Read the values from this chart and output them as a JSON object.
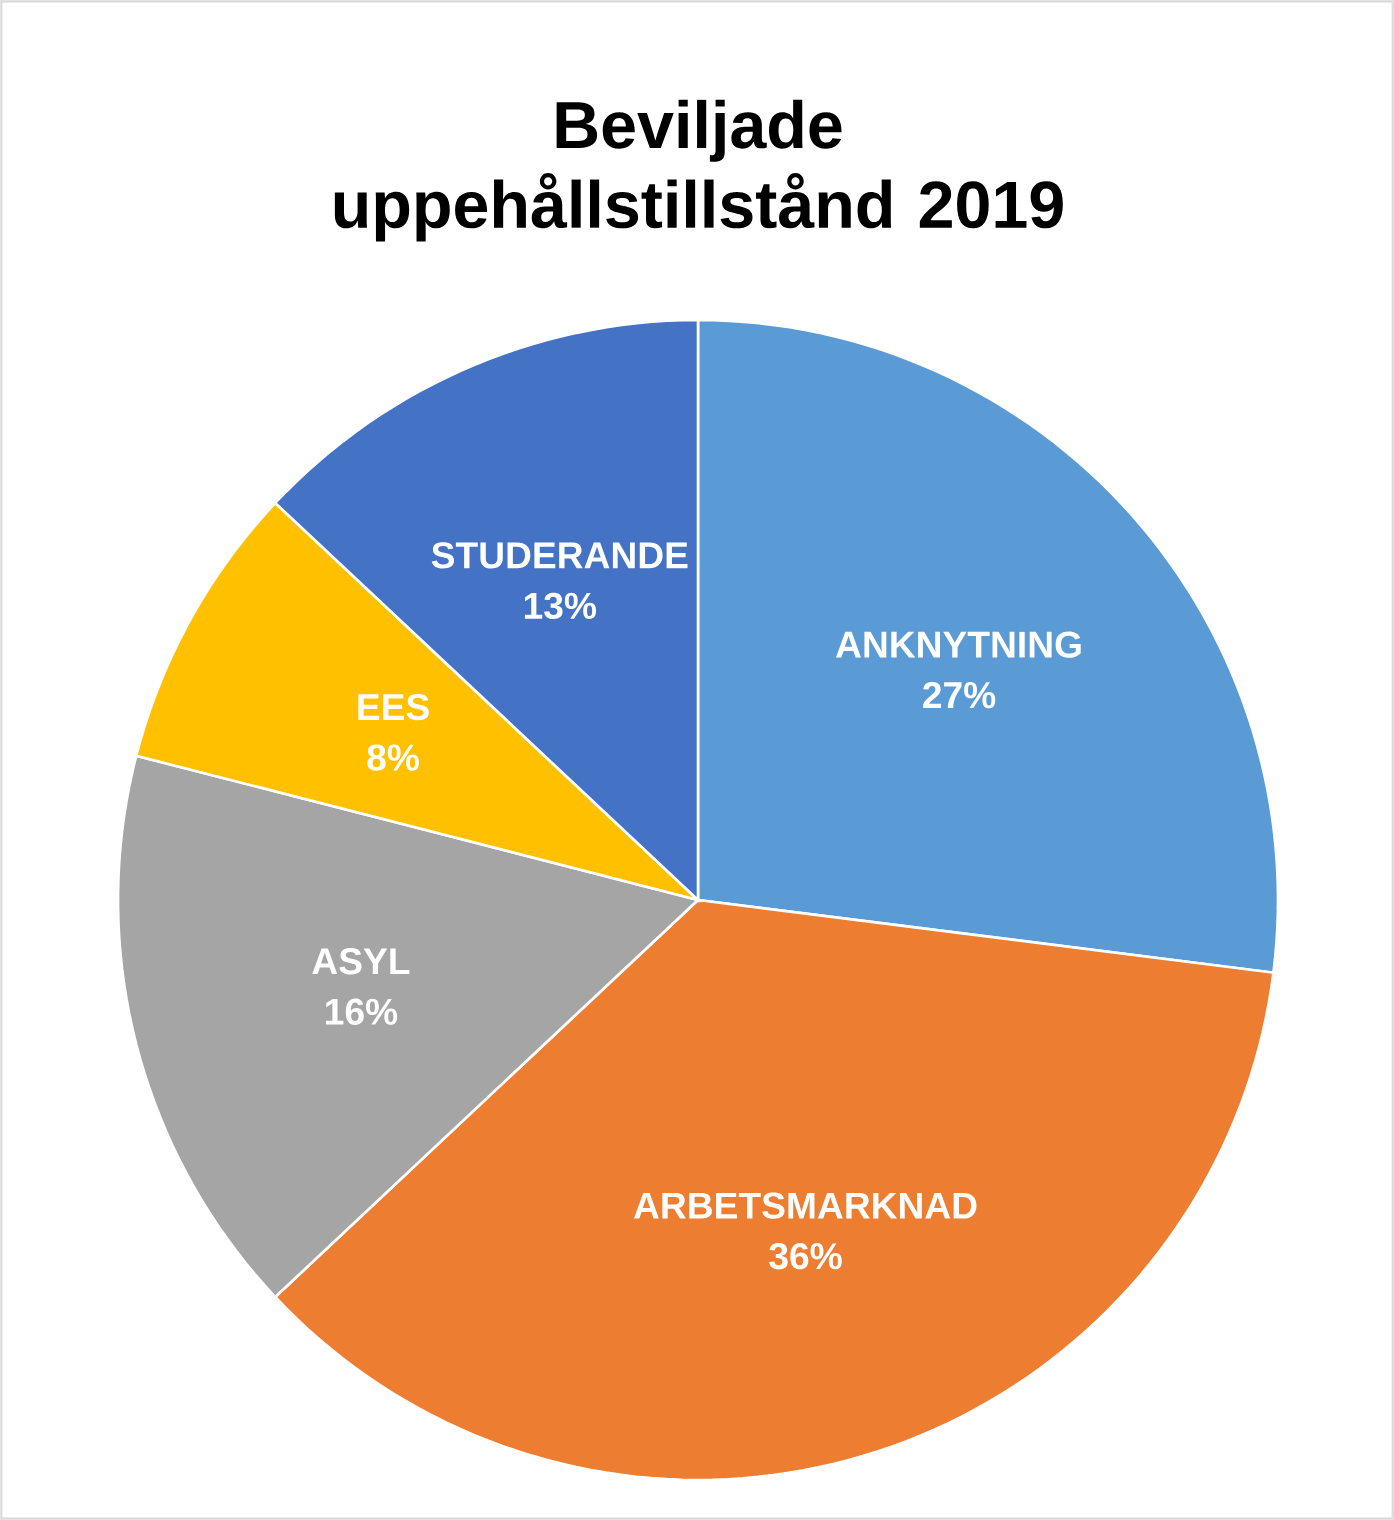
{
  "chart_data": {
    "type": "pie",
    "title": "Beviljade uppehållstillstånd 2019",
    "categories": [
      "ANKNYTNING",
      "ARBETSMARKNAD",
      "ASYL",
      "EES",
      "STUDERANDE"
    ],
    "values": [
      27,
      36,
      16,
      8,
      13
    ],
    "value_labels": [
      "27%",
      "36%",
      "16%",
      "8%",
      "13%"
    ],
    "colors": [
      "#5b9bd5",
      "#ed7d31",
      "#a5a5a5",
      "#ffc000",
      "#4472c4"
    ]
  }
}
